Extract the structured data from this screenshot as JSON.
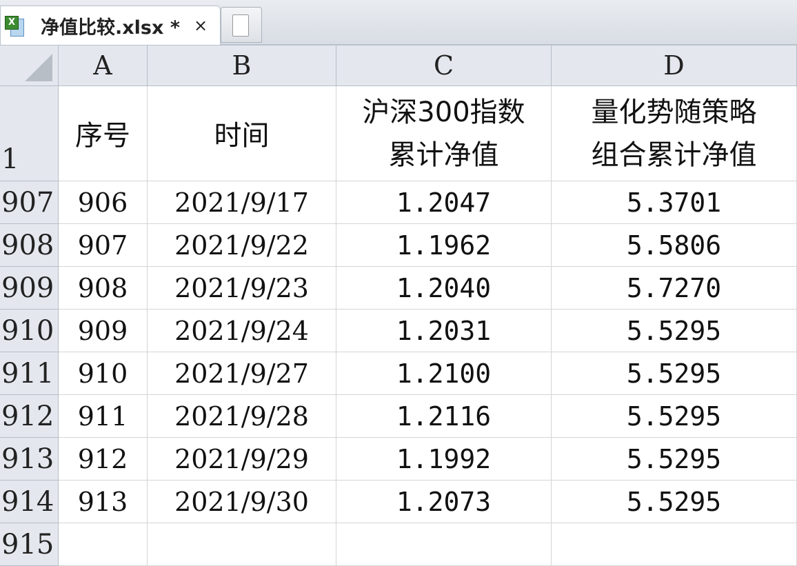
{
  "tab": {
    "title": "净值比较.xlsx *",
    "close": "×"
  },
  "columns": [
    "A",
    "B",
    "C",
    "D"
  ],
  "header_row": {
    "num": "1",
    "cells": [
      [
        "序号"
      ],
      [
        "时间"
      ],
      [
        "沪深300指数",
        "累计净值"
      ],
      [
        "量化势随策略",
        "组合累计净值"
      ]
    ]
  },
  "rows": [
    {
      "num": "907",
      "cells": [
        "906",
        "2021/9/17",
        "1.2047",
        "5.3701"
      ]
    },
    {
      "num": "908",
      "cells": [
        "907",
        "2021/9/22",
        "1.1962",
        "5.5806"
      ]
    },
    {
      "num": "909",
      "cells": [
        "908",
        "2021/9/23",
        "1.2040",
        "5.7270"
      ]
    },
    {
      "num": "910",
      "cells": [
        "909",
        "2021/9/24",
        "1.2031",
        "5.5295"
      ]
    },
    {
      "num": "911",
      "cells": [
        "910",
        "2021/9/27",
        "1.2100",
        "5.5295"
      ]
    },
    {
      "num": "912",
      "cells": [
        "911",
        "2021/9/28",
        "1.2116",
        "5.5295"
      ]
    },
    {
      "num": "913",
      "cells": [
        "912",
        "2021/9/29",
        "1.1992",
        "5.5295"
      ]
    },
    {
      "num": "914",
      "cells": [
        "913",
        "2021/9/30",
        "1.2073",
        "5.5295"
      ]
    },
    {
      "num": "915",
      "cells": [
        "",
        "",
        "",
        ""
      ]
    }
  ]
}
